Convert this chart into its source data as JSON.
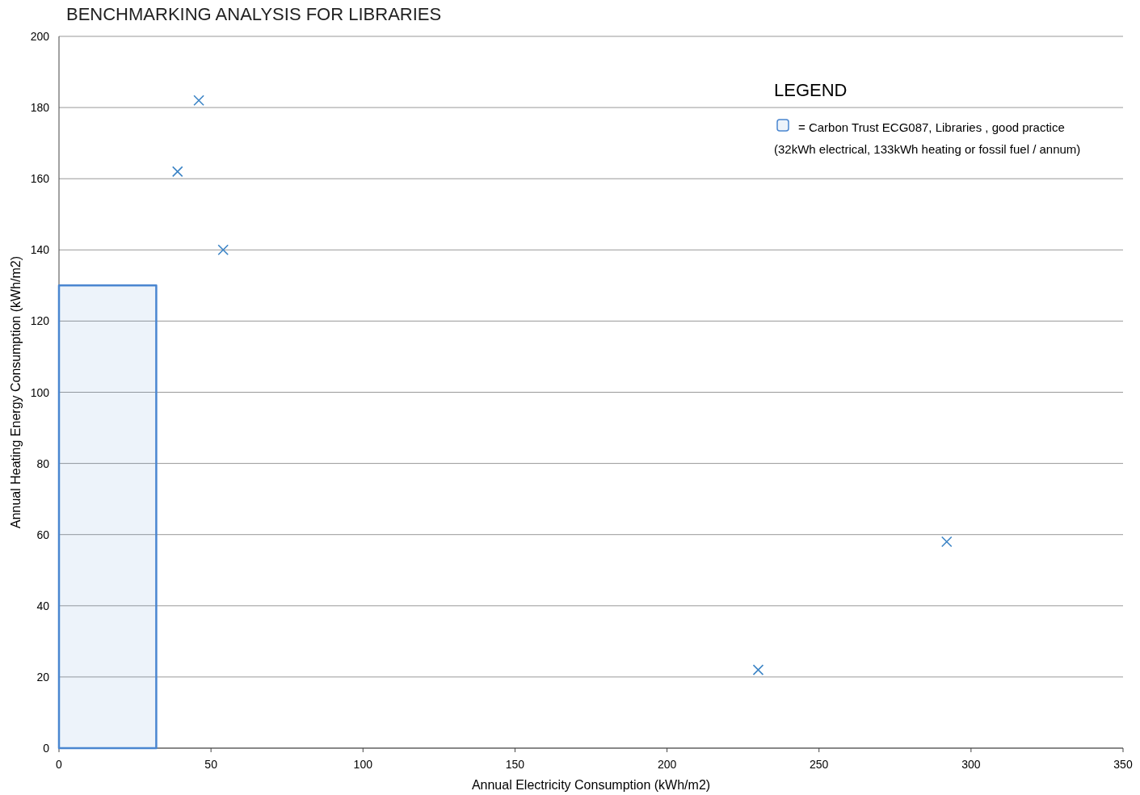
{
  "chart_data": {
    "type": "scatter",
    "title": "BENCHMARKING ANALYSIS FOR LIBRARIES",
    "xlabel": "Annual Electricity Consumption (kWh/m2)",
    "ylabel": "Annual Heating Energy Consumption (kWh/m2)",
    "legend_title": "LEGEND",
    "annotations": [
      "(32kWh electrical, 133kWh heating or fossil fuel / annum)"
    ],
    "series": [
      {
        "type": "area",
        "marker": "none",
        "name": "= Carbon Trust ECG087, Libraries , good practice",
        "color": "#4a86d0",
        "x": [
          0,
          32
        ],
        "values": [
          130,
          130
        ]
      },
      {
        "color": "#3d85c6",
        "x": [
          46,
          39,
          54,
          230,
          292
        ],
        "values": [
          182,
          162,
          140,
          22,
          58
        ]
      }
    ],
    "xlim": [
      0,
      350
    ],
    "xticks": [
      0,
      50,
      100,
      150,
      200,
      250,
      300,
      350
    ],
    "ylim": [
      0,
      200
    ],
    "yticks": [
      0,
      20,
      40,
      60,
      80,
      100,
      120,
      140,
      160,
      180,
      200
    ],
    "grid": "y",
    "legend": "top right",
    "marker": "cross"
  }
}
